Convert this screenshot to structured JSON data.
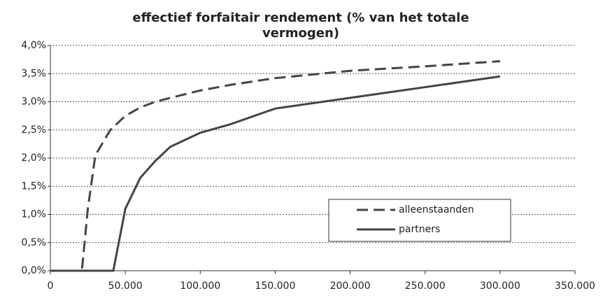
{
  "chart_data": {
    "type": "line",
    "title": [
      "effectief forfaitair rendement (% van het totale",
      "vermogen)"
    ],
    "x": [
      0,
      20000,
      21000,
      25000,
      30000,
      40000,
      42000,
      50000,
      60000,
      70000,
      80000,
      100000,
      120000,
      150000,
      200000,
      250000,
      300000
    ],
    "series": [
      {
        "name": "alleenstaanden",
        "color": "#444444",
        "dashed": true,
        "values": [
          0,
          0,
          0,
          1.1,
          2.05,
          2.5,
          2.55,
          2.75,
          2.9,
          3.0,
          3.07,
          3.2,
          3.3,
          3.42,
          3.55,
          3.63,
          3.72
        ]
      },
      {
        "name": "partners",
        "color": "#444444",
        "dashed": false,
        "values": [
          0,
          0,
          0,
          0,
          0,
          0,
          0,
          1.1,
          1.65,
          1.95,
          2.2,
          2.45,
          2.6,
          2.88,
          3.07,
          3.26,
          3.45
        ]
      }
    ],
    "xlim": [
      0,
      350000
    ],
    "xticks": [
      0,
      {
        "value": 50000,
        "label": "50.000"
      },
      {
        "value": 100000,
        "label": "100.000"
      },
      {
        "value": 150000,
        "label": "150.000"
      },
      {
        "value": 200000,
        "label": "200.000"
      },
      {
        "value": 250000,
        "label": "250.000"
      },
      {
        "value": 300000,
        "label": "300.000"
      },
      {
        "value": 350000,
        "label": "350.000"
      }
    ],
    "ylim": [
      0,
      4
    ],
    "yticks": [
      {
        "value": 0,
        "label": "0,0%"
      },
      {
        "value": 0.5,
        "label": "0,5%"
      },
      {
        "value": 1,
        "label": "1,0%"
      },
      {
        "value": 1.5,
        "label": "1,5%"
      },
      {
        "value": 2,
        "label": "2,0%"
      },
      {
        "value": 2.5,
        "label": "2,5%"
      },
      {
        "value": 3,
        "label": "3,0%"
      },
      {
        "value": 3.5,
        "label": "3,5%"
      },
      {
        "value": 4,
        "label": "4,0%"
      }
    ],
    "grid": true,
    "legend": "lower right"
  }
}
